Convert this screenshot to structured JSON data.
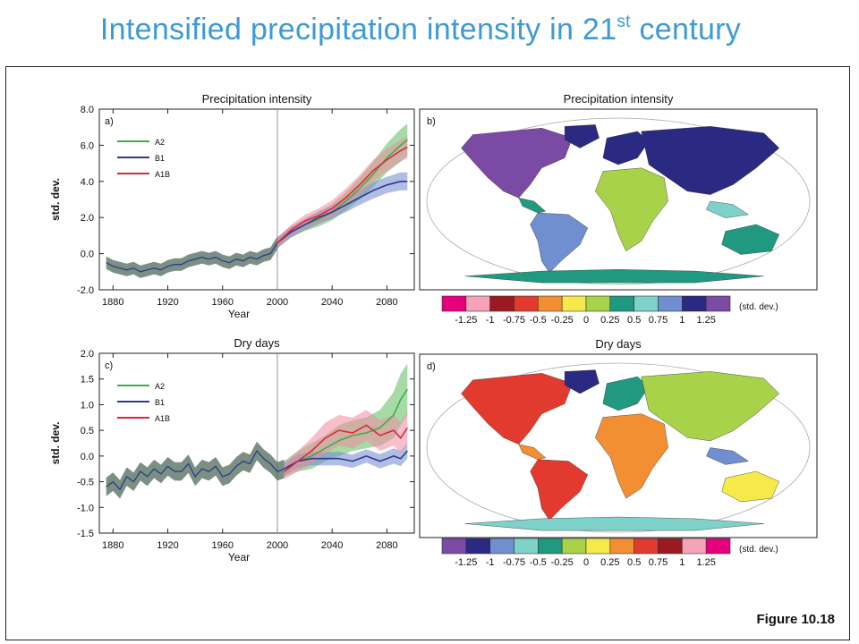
{
  "slide": {
    "title_main": "Intensified precipitation intensity in 21",
    "title_sup": "st",
    "title_tail": " century",
    "figure_label": "Figure 10.18"
  },
  "colors": {
    "title": "#3c9ad6",
    "A2": "#3fae49",
    "B1": "#2e3a8c",
    "A1B": "#e0263a",
    "historic": "#3f5a48"
  },
  "chart_data": [
    {
      "type": "line",
      "panel": "a)",
      "title": "Precipitation intensity",
      "xlabel": "Year",
      "ylabel": "std. dev.",
      "xlim": [
        1870,
        2100
      ],
      "ylim": [
        -2.0,
        8.0
      ],
      "x_ticks": [
        1880,
        1920,
        1960,
        2000,
        2040,
        2080
      ],
      "x_tick_labels": [
        "1880",
        "1920",
        "1960",
        "2000",
        "2040",
        "2080"
      ],
      "y_ticks": [
        -2,
        0,
        2,
        4,
        6,
        8
      ],
      "y_tick_labels": [
        "-2.0",
        "0.0",
        "2.0",
        "4.0",
        "6.0",
        "8.0"
      ],
      "vline": 2000,
      "legend": [
        "A2",
        "B1",
        "A1B"
      ],
      "historic": {
        "x": [
          1875,
          1880,
          1885,
          1890,
          1895,
          1900,
          1905,
          1910,
          1915,
          1920,
          1925,
          1930,
          1935,
          1940,
          1945,
          1950,
          1955,
          1960,
          1965,
          1970,
          1975,
          1980,
          1985,
          1990,
          1995,
          2000
        ],
        "y": [
          -0.5,
          -0.7,
          -0.8,
          -0.9,
          -0.8,
          -1.0,
          -0.9,
          -0.8,
          -0.9,
          -0.7,
          -0.6,
          -0.6,
          -0.4,
          -0.3,
          -0.2,
          -0.3,
          -0.2,
          -0.4,
          -0.5,
          -0.3,
          -0.4,
          -0.2,
          -0.3,
          -0.1,
          0.0,
          0.6
        ],
        "spread": 0.35
      },
      "series": [
        {
          "name": "A2",
          "x": [
            2000,
            2010,
            2020,
            2030,
            2040,
            2050,
            2060,
            2070,
            2080,
            2090,
            2095
          ],
          "y": [
            0.6,
            1.2,
            1.6,
            1.9,
            2.3,
            2.9,
            3.6,
            4.4,
            5.3,
            6.0,
            6.3
          ],
          "spread": [
            0.3,
            0.3,
            0.35,
            0.4,
            0.45,
            0.5,
            0.6,
            0.7,
            0.8,
            0.9,
            0.9
          ]
        },
        {
          "name": "B1",
          "x": [
            2000,
            2010,
            2020,
            2030,
            2040,
            2050,
            2060,
            2070,
            2080,
            2090,
            2095
          ],
          "y": [
            0.6,
            1.2,
            1.6,
            2.0,
            2.3,
            2.7,
            3.1,
            3.5,
            3.8,
            4.0,
            4.0
          ],
          "spread": [
            0.3,
            0.3,
            0.3,
            0.35,
            0.35,
            0.4,
            0.4,
            0.45,
            0.45,
            0.5,
            0.5
          ]
        },
        {
          "name": "A1B",
          "x": [
            2000,
            2010,
            2020,
            2030,
            2040,
            2050,
            2060,
            2070,
            2080,
            2090,
            2095
          ],
          "y": [
            0.6,
            1.3,
            1.8,
            2.1,
            2.5,
            3.1,
            3.8,
            4.6,
            5.2,
            5.7,
            5.9
          ],
          "spread": [
            0.3,
            0.3,
            0.35,
            0.4,
            0.45,
            0.5,
            0.55,
            0.6,
            0.6,
            0.6,
            0.6
          ]
        }
      ]
    },
    {
      "type": "line",
      "panel": "c)",
      "title": "Dry days",
      "xlabel": "Year",
      "ylabel": "std. dev.",
      "xlim": [
        1870,
        2100
      ],
      "ylim": [
        -1.5,
        2.0
      ],
      "x_ticks": [
        1880,
        1920,
        1960,
        2000,
        2040,
        2080
      ],
      "x_tick_labels": [
        "1880",
        "1920",
        "1960",
        "2000",
        "2040",
        "2080"
      ],
      "y_ticks": [
        -1.5,
        -1.0,
        -0.5,
        0.0,
        0.5,
        1.0,
        1.5,
        2.0
      ],
      "y_tick_labels": [
        "-1.5",
        "-1.0",
        "-0.5",
        "0.0",
        "0.5",
        "1.0",
        "1.5",
        "2.0"
      ],
      "vline": 2000,
      "legend": [
        "A2",
        "B1",
        "A1B"
      ],
      "historic": {
        "x": [
          1875,
          1880,
          1885,
          1890,
          1895,
          1900,
          1905,
          1910,
          1915,
          1920,
          1925,
          1930,
          1935,
          1940,
          1945,
          1950,
          1955,
          1960,
          1965,
          1970,
          1975,
          1980,
          1985,
          1990,
          1995,
          2000,
          2005
        ],
        "y": [
          -0.6,
          -0.5,
          -0.65,
          -0.4,
          -0.5,
          -0.3,
          -0.4,
          -0.25,
          -0.35,
          -0.2,
          -0.3,
          -0.3,
          -0.15,
          -0.4,
          -0.25,
          -0.3,
          -0.2,
          -0.4,
          -0.35,
          -0.2,
          -0.1,
          -0.15,
          0.1,
          -0.05,
          -0.15,
          -0.3,
          -0.25
        ],
        "spread": 0.18
      },
      "series": [
        {
          "name": "A2",
          "x": [
            2005,
            2015,
            2025,
            2035,
            2045,
            2055,
            2065,
            2075,
            2085,
            2090,
            2095
          ],
          "y": [
            -0.25,
            -0.1,
            0.0,
            0.15,
            0.3,
            0.4,
            0.45,
            0.55,
            0.8,
            1.1,
            1.3
          ],
          "spread": [
            0.15,
            0.2,
            0.25,
            0.25,
            0.3,
            0.3,
            0.3,
            0.35,
            0.45,
            0.5,
            0.5
          ]
        },
        {
          "name": "B1",
          "x": [
            2005,
            2015,
            2025,
            2035,
            2045,
            2055,
            2065,
            2075,
            2085,
            2090,
            2095
          ],
          "y": [
            -0.25,
            -0.1,
            -0.05,
            -0.05,
            -0.05,
            -0.1,
            0.0,
            -0.1,
            0.0,
            -0.05,
            0.1
          ],
          "spread": [
            0.12,
            0.13,
            0.13,
            0.13,
            0.13,
            0.13,
            0.13,
            0.14,
            0.15,
            0.15,
            0.15
          ]
        },
        {
          "name": "A1B",
          "x": [
            2005,
            2015,
            2025,
            2035,
            2045,
            2055,
            2065,
            2075,
            2085,
            2090,
            2095
          ],
          "y": [
            -0.3,
            -0.1,
            0.1,
            0.35,
            0.5,
            0.45,
            0.6,
            0.4,
            0.5,
            0.35,
            0.55
          ],
          "spread": [
            0.15,
            0.2,
            0.25,
            0.3,
            0.3,
            0.3,
            0.3,
            0.3,
            0.3,
            0.3,
            0.3
          ]
        }
      ]
    },
    {
      "type": "heatmap",
      "panel": "b)",
      "title": "Precipitation intensity",
      "colorbar_unit": "(std. dev.)",
      "colorbar_labels": [
        "-1.25",
        "-1",
        "-0.75",
        "-0.5",
        "-0.25",
        "0",
        "0.25",
        "0.5",
        "0.75",
        "1",
        "1.25"
      ],
      "colorbar_colors": [
        "#e6007e",
        "#f5a3b7",
        "#9b1a22",
        "#e23a2e",
        "#f28f33",
        "#f6e94a",
        "#a8d24a",
        "#1f9a80",
        "#7fd2c9",
        "#6f8fd0",
        "#2a2a82",
        "#7b4aa5"
      ]
    },
    {
      "type": "heatmap",
      "panel": "d)",
      "title": "Dry days",
      "colorbar_unit": "(std. dev.)",
      "colorbar_labels": [
        "-1.25",
        "-1",
        "-0.75",
        "-0.5",
        "-0.25",
        "0",
        "0.25",
        "0.5",
        "0.75",
        "1",
        "1.25"
      ],
      "colorbar_colors": [
        "#7b4aa5",
        "#2a2a82",
        "#6f8fd0",
        "#7fd2c9",
        "#1f9a80",
        "#a8d24a",
        "#f6e94a",
        "#f28f33",
        "#e23a2e",
        "#9b1a22",
        "#f5a3b7",
        "#e6007e"
      ]
    }
  ]
}
